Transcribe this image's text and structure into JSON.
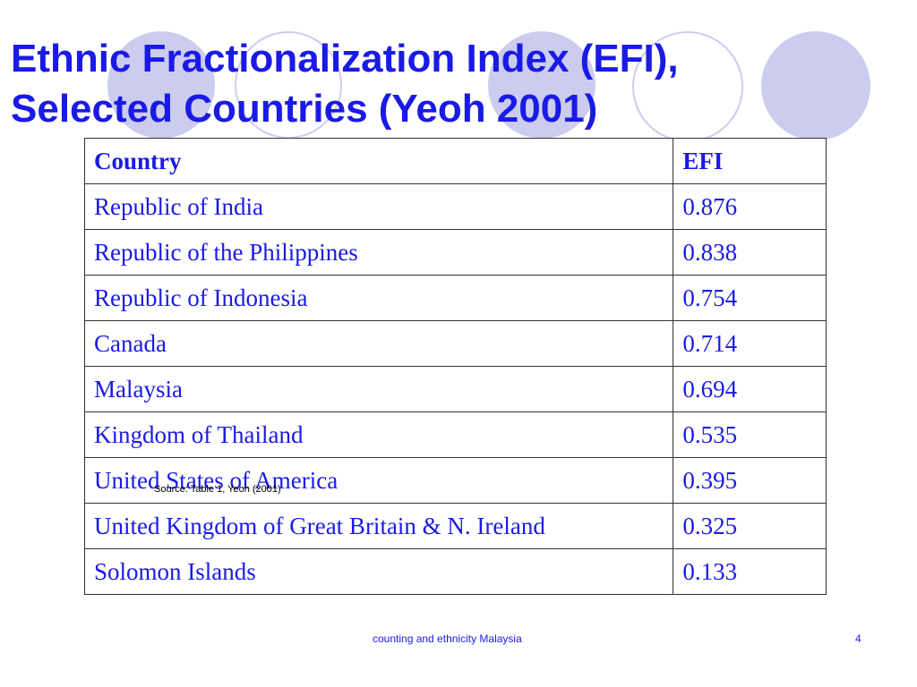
{
  "title": "Ethnic Fractionalization Index (EFI), Selected Countries (Yeoh 2001)",
  "table": {
    "headers": [
      "Country",
      "EFI"
    ],
    "rows": [
      [
        "Republic of India",
        "0.876"
      ],
      [
        "Republic of the Philippines",
        "0.838"
      ],
      [
        "Republic of Indonesia",
        "0.754"
      ],
      [
        "Canada",
        "0.714"
      ],
      [
        "Malaysia",
        "0.694"
      ],
      [
        "Kingdom of Thailand",
        "0.535"
      ],
      [
        "United States of America",
        "0.395"
      ],
      [
        "United Kingdom of Great Britain & N. Ireland",
        "0.325"
      ],
      [
        "Solomon Islands",
        "0.133"
      ]
    ]
  },
  "source_note": "Source: Table 1, Yeoh (2001)",
  "footer": {
    "text": "counting and ethnicity Malaysia",
    "page_number": "4"
  },
  "colors": {
    "text": "#1a1ae6",
    "decoration": "#ccccee",
    "table_border": "#333333"
  }
}
